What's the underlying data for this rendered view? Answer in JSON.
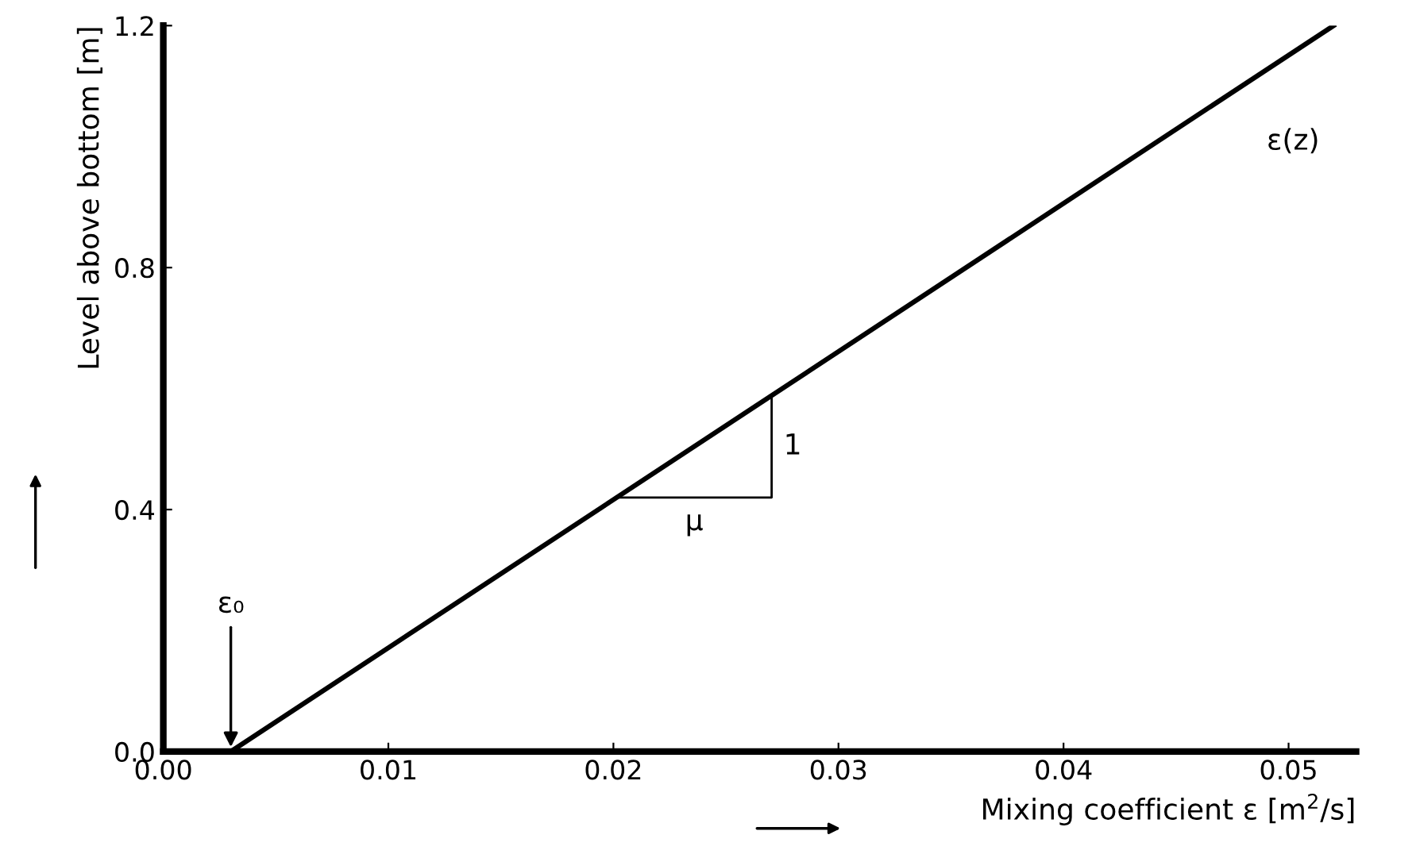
{
  "chart_data": {
    "type": "line",
    "xlabel": "Mixing coefficient ε [m$^{2}$/s]",
    "ylabel": "Level above bottom [m]",
    "x": [
      0.003,
      0.052
    ],
    "series": [
      {
        "color": "#000000",
        "values": [
          0.0,
          1.2
        ]
      }
    ],
    "xlim": [
      0,
      0.053
    ],
    "ylim": [
      0,
      1.2
    ],
    "xticks": [
      {
        "value": 0,
        "label": "0.00"
      },
      {
        "value": 0.01,
        "label": "0.01"
      },
      {
        "value": 0.02,
        "label": "0.02"
      },
      {
        "value": 0.03,
        "label": "0.03"
      },
      {
        "value": 0.04,
        "label": "0.04"
      },
      {
        "value": 0.05,
        "label": "0.05"
      }
    ],
    "yticks": [
      {
        "value": 0,
        "label": "0.0"
      },
      {
        "value": 0.4,
        "label": "0.4"
      },
      {
        "value": 0.8,
        "label": "0.8"
      },
      {
        "value": 1.2,
        "label": "1.2"
      }
    ],
    "annotations": [
      "ε(z)",
      {
        "text": "ε₀",
        "x": 0.003,
        "y": 0.0
      },
      "μ",
      "1"
    ],
    "grid": false,
    "legend": false
  }
}
